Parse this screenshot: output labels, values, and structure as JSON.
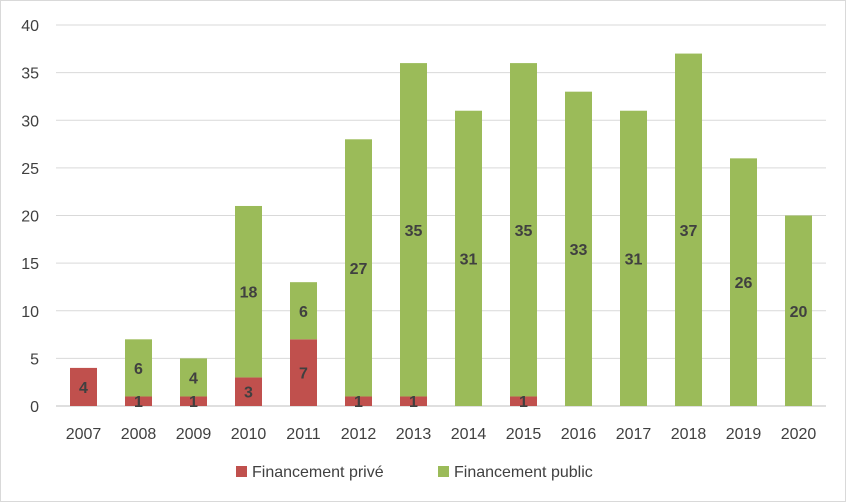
{
  "chart_data": {
    "type": "bar",
    "stacked": true,
    "categories": [
      "2007",
      "2008",
      "2009",
      "2010",
      "2011",
      "2012",
      "2013",
      "2014",
      "2015",
      "2016",
      "2017",
      "2018",
      "2019",
      "2020"
    ],
    "series": [
      {
        "name": "Financement privé",
        "color": "#c0504d",
        "values": [
          4,
          1,
          1,
          3,
          7,
          1,
          1,
          0,
          1,
          0,
          0,
          0,
          0,
          0
        ],
        "labels": [
          "4",
          "1",
          "1",
          "3",
          "7",
          "1",
          "1",
          "",
          "1",
          "",
          "",
          "",
          "",
          ""
        ]
      },
      {
        "name": "Financement public",
        "color": "#9bbb59",
        "values": [
          0,
          6,
          4,
          18,
          6,
          27,
          35,
          31,
          35,
          33,
          31,
          37,
          26,
          20
        ],
        "labels": [
          "",
          "6",
          "4",
          "18",
          "6",
          "27",
          "35",
          "31",
          "35",
          "33",
          "31",
          "37",
          "26",
          "20"
        ]
      }
    ],
    "ylim": [
      0,
      40
    ],
    "yticks": [
      0,
      5,
      10,
      15,
      20,
      25,
      30,
      35,
      40
    ],
    "title": "",
    "xlabel": "",
    "ylabel": "",
    "grid": true,
    "legend_position": "bottom"
  }
}
